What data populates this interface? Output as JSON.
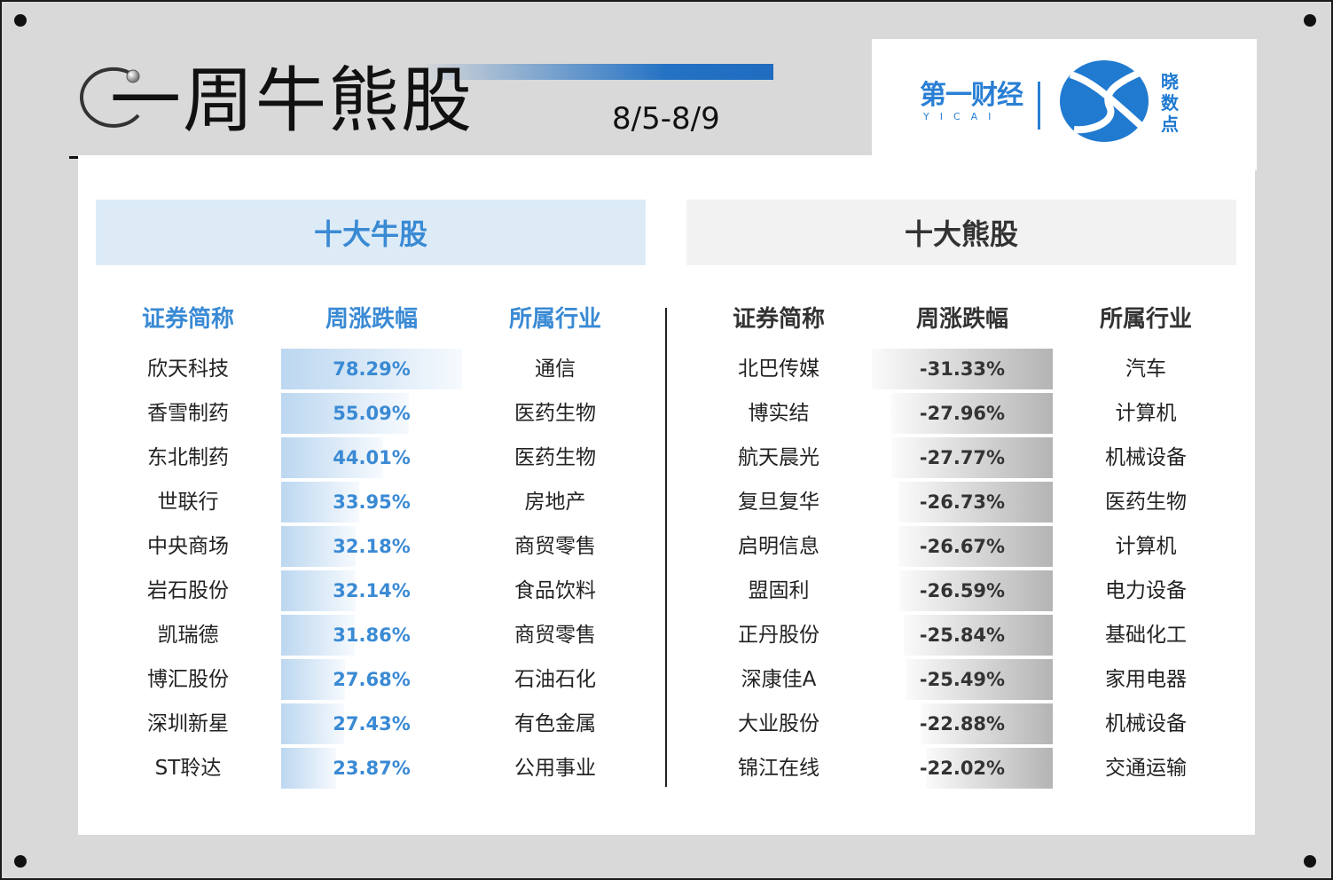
{
  "header": {
    "title": "一周牛熊股",
    "date_range": "8/5-8/9",
    "logo_left": "第一财经",
    "logo_left_sub": "YICAI",
    "logo_right_chars": [
      "晓",
      "数",
      "点"
    ]
  },
  "bull": {
    "heading": "十大牛股",
    "columns": [
      "证券简称",
      "周涨跌幅",
      "所属行业"
    ],
    "rows": [
      {
        "name": "欣天科技",
        "change": "78.29%",
        "value": 78.29,
        "industry": "通信"
      },
      {
        "name": "香雪制药",
        "change": "55.09%",
        "value": 55.09,
        "industry": "医药生物"
      },
      {
        "name": "东北制药",
        "change": "44.01%",
        "value": 44.01,
        "industry": "医药生物"
      },
      {
        "name": "世联行",
        "change": "33.95%",
        "value": 33.95,
        "industry": "房地产"
      },
      {
        "name": "中央商场",
        "change": "32.18%",
        "value": 32.18,
        "industry": "商贸零售"
      },
      {
        "name": "岩石股份",
        "change": "32.14%",
        "value": 32.14,
        "industry": "食品饮料"
      },
      {
        "name": "凯瑞德",
        "change": "31.86%",
        "value": 31.86,
        "industry": "商贸零售"
      },
      {
        "name": "博汇股份",
        "change": "27.68%",
        "value": 27.68,
        "industry": "石油石化"
      },
      {
        "name": "深圳新星",
        "change": "27.43%",
        "value": 27.43,
        "industry": "有色金属"
      },
      {
        "name": "ST聆达",
        "change": "23.87%",
        "value": 23.87,
        "industry": "公用事业"
      }
    ],
    "bar_color": "#2e86d6"
  },
  "bear": {
    "heading": "十大熊股",
    "columns": [
      "证券简称",
      "周涨跌幅",
      "所属行业"
    ],
    "rows": [
      {
        "name": "北巴传媒",
        "change": "-31.33%",
        "value": -31.33,
        "industry": "汽车"
      },
      {
        "name": "博实结",
        "change": "-27.96%",
        "value": -27.96,
        "industry": "计算机"
      },
      {
        "name": "航天晨光",
        "change": "-27.77%",
        "value": -27.77,
        "industry": "机械设备"
      },
      {
        "name": "复旦复华",
        "change": "-26.73%",
        "value": -26.73,
        "industry": "医药生物"
      },
      {
        "name": "启明信息",
        "change": "-26.67%",
        "value": -26.67,
        "industry": "计算机"
      },
      {
        "name": "盟固利",
        "change": "-26.59%",
        "value": -26.59,
        "industry": "电力设备"
      },
      {
        "name": "正丹股份",
        "change": "-25.84%",
        "value": -25.84,
        "industry": "基础化工"
      },
      {
        "name": "深康佳A",
        "change": "-25.49%",
        "value": -25.49,
        "industry": "家用电器"
      },
      {
        "name": "大业股份",
        "change": "-22.88%",
        "value": -22.88,
        "industry": "机械设备"
      },
      {
        "name": "锦江在线",
        "change": "-22.02%",
        "value": -22.02,
        "industry": "交通运输"
      }
    ],
    "bar_color": "#a6a6a6"
  }
}
